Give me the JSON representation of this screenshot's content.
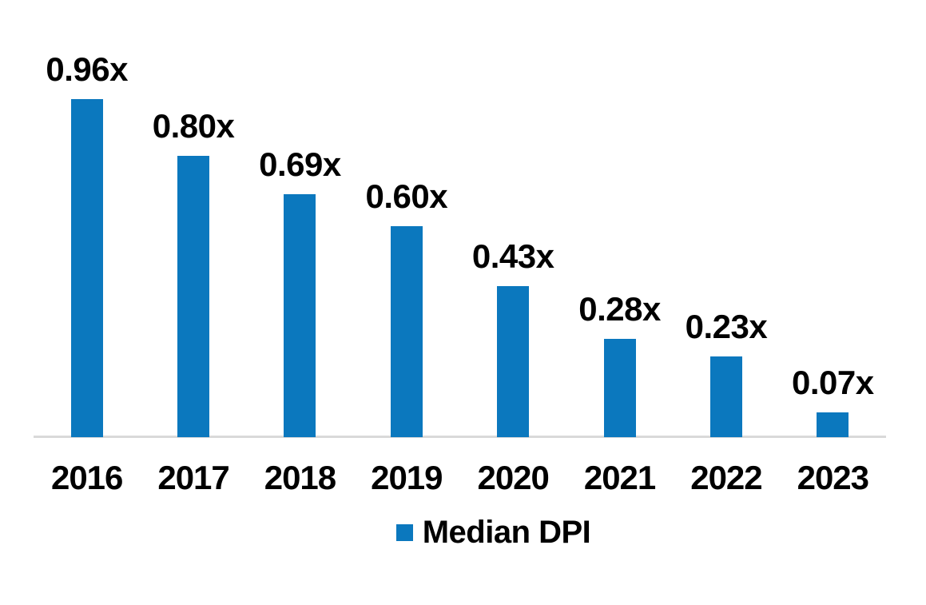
{
  "chart_data": {
    "type": "bar",
    "title": "",
    "xlabel": "",
    "ylabel": "",
    "categories": [
      "2016",
      "2017",
      "2018",
      "2019",
      "2020",
      "2021",
      "2022",
      "2023"
    ],
    "series": [
      {
        "name": "Median DPI",
        "values": [
          0.96,
          0.8,
          0.69,
          0.6,
          0.43,
          0.28,
          0.23,
          0.07
        ]
      }
    ],
    "value_labels": [
      "0.96x",
      "0.80x",
      "0.69x",
      "0.60x",
      "0.43x",
      "0.28x",
      "0.23x",
      "0.07x"
    ],
    "ylim": [
      0,
      1.0
    ],
    "grid": false,
    "y_axis_visible": false,
    "legend_position": "bottom"
  },
  "legend": {
    "items": [
      {
        "label": "Median DPI",
        "swatch_color": "#0b78be"
      }
    ]
  },
  "colors": {
    "bar": "#0b78be",
    "axis_line": "#d9d9d9",
    "text": "#000000",
    "background": "#ffffff"
  }
}
